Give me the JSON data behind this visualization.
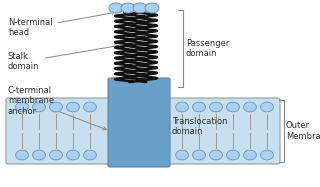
{
  "bg_color": "#ffffff",
  "membrane_color": "#c8dff0",
  "membrane_stroke": "#999999",
  "translocation_color": "#6aa0c8",
  "head_color": "#aad0ee",
  "head_stroke": "#6699cc",
  "wavy_color": "#111111",
  "label_color": "#333333",
  "arrow_color": "#888888",
  "labels": {
    "n_terminal": "N-terminal\nhead",
    "stalk": "Stalk\ndomain",
    "c_terminal": "C-terminal\nmembrane\nanchor",
    "passenger": "Passenger\ndomain",
    "translocation": "Translocation\ndomain",
    "outer_membrane": "Outer\nMembrane"
  },
  "fontsize": 6.0
}
